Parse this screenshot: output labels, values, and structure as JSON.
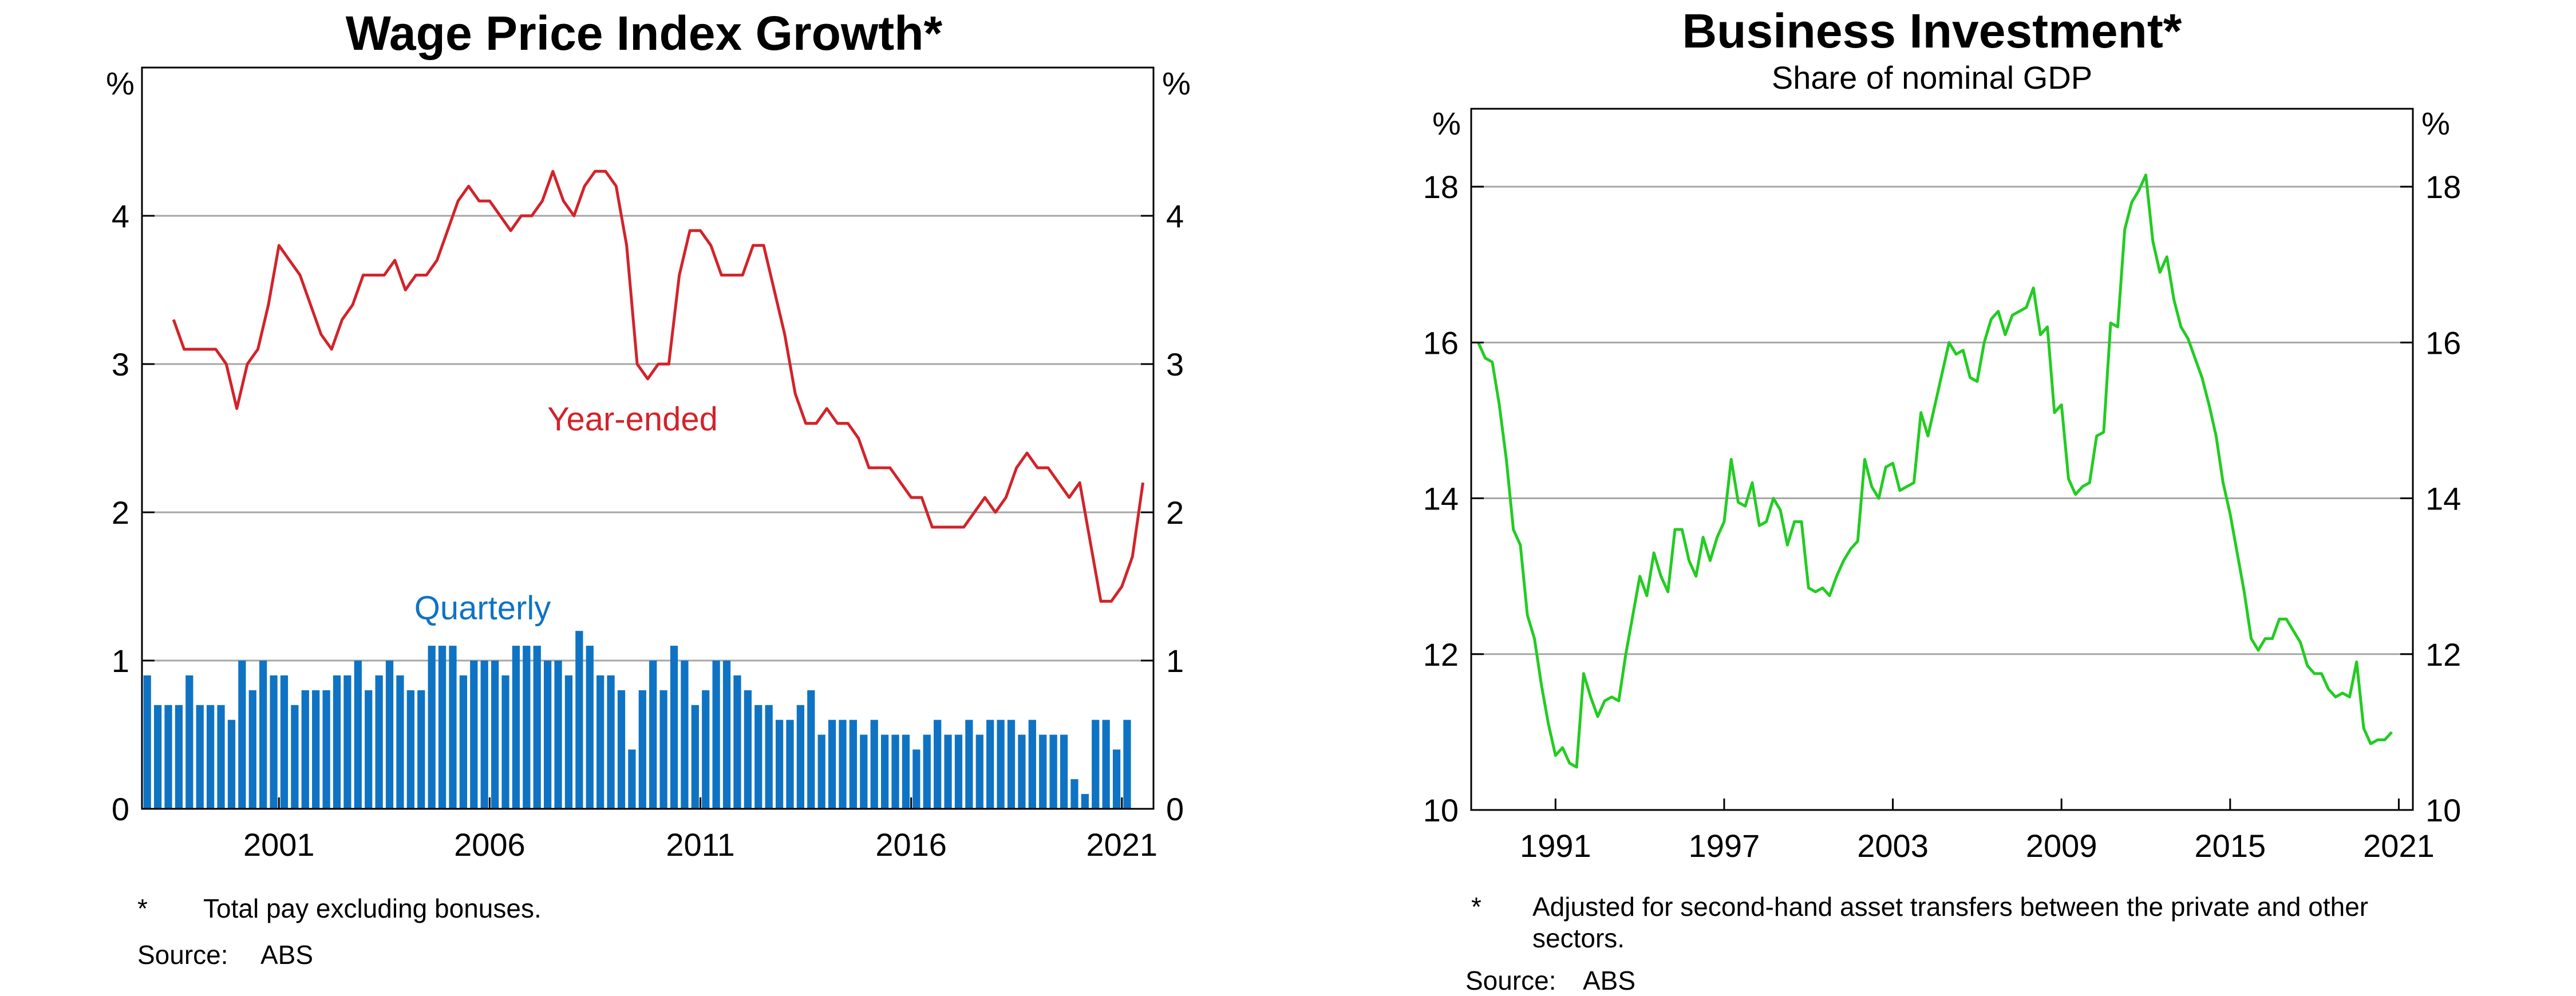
{
  "chart_data": [
    {
      "type": "bar",
      "title": "Wage Price Index Growth*",
      "subtitle": "",
      "y_unit_left": "%",
      "y_unit_right": "%",
      "ylim": [
        0,
        5
      ],
      "yticks": [
        0,
        1,
        2,
        3,
        4
      ],
      "ytick_labels": [
        "0",
        "1",
        "2",
        "3",
        "4"
      ],
      "xlim": [
        1997.75,
        2021.75
      ],
      "xticks": [
        2001,
        2006,
        2011,
        2016,
        2021
      ],
      "xtick_labels": [
        "2001",
        "2006",
        "2011",
        "2016",
        "2021"
      ],
      "grid": true,
      "series": [
        {
          "name": "Year-ended",
          "type": "line",
          "color": "#d2232a",
          "x_start": 1998.5,
          "x_step": 0.25,
          "values": [
            3.3,
            3.1,
            3.1,
            3.1,
            3.1,
            3.0,
            2.7,
            3.0,
            3.1,
            3.4,
            3.8,
            3.7,
            3.6,
            3.4,
            3.2,
            3.1,
            3.3,
            3.4,
            3.6,
            3.6,
            3.6,
            3.7,
            3.5,
            3.6,
            3.6,
            3.7,
            3.9,
            4.1,
            4.2,
            4.1,
            4.1,
            4.0,
            3.9,
            4.0,
            4.0,
            4.1,
            4.3,
            4.1,
            4.0,
            4.2,
            4.3,
            4.3,
            4.2,
            3.8,
            3.0,
            2.9,
            3.0,
            3.0,
            3.6,
            3.9,
            3.9,
            3.8,
            3.6,
            3.6,
            3.6,
            3.8,
            3.8,
            3.5,
            3.2,
            2.8,
            2.6,
            2.6,
            2.7,
            2.6,
            2.6,
            2.5,
            2.3,
            2.3,
            2.3,
            2.2,
            2.1,
            2.1,
            1.9,
            1.9,
            1.9,
            1.9,
            2.0,
            2.1,
            2.0,
            2.1,
            2.3,
            2.4,
            2.3,
            2.3,
            2.2,
            2.1,
            2.2,
            1.8,
            1.4,
            1.4,
            1.5,
            1.7,
            2.2
          ]
        },
        {
          "name": "Quarterly",
          "type": "bar",
          "color": "#0f73c4",
          "x_start": 1997.75,
          "x_step": 0.25,
          "values": [
            0.9,
            0.7,
            0.7,
            0.7,
            0.9,
            0.7,
            0.7,
            0.7,
            0.6,
            1.0,
            0.8,
            1.0,
            0.9,
            0.9,
            0.7,
            0.8,
            0.8,
            0.8,
            0.9,
            0.9,
            1.0,
            0.8,
            0.9,
            1.0,
            0.9,
            0.8,
            0.8,
            1.1,
            1.1,
            1.1,
            0.9,
            1.0,
            1.0,
            1.0,
            0.9,
            1.1,
            1.1,
            1.1,
            1.0,
            1.0,
            0.9,
            1.2,
            1.1,
            0.9,
            0.9,
            0.8,
            0.4,
            0.8,
            1.0,
            0.8,
            1.1,
            1.0,
            0.7,
            0.8,
            1.0,
            1.0,
            0.9,
            0.8,
            0.7,
            0.7,
            0.6,
            0.6,
            0.7,
            0.8,
            0.5,
            0.6,
            0.6,
            0.6,
            0.5,
            0.6,
            0.5,
            0.5,
            0.5,
            0.4,
            0.5,
            0.6,
            0.5,
            0.5,
            0.6,
            0.5,
            0.6,
            0.6,
            0.6,
            0.5,
            0.6,
            0.5,
            0.5,
            0.5,
            0.2,
            0.1,
            0.6,
            0.6,
            0.4,
            0.6
          ]
        }
      ],
      "annotations": [
        {
          "text": "Year-ended",
          "color": "#d2232a"
        },
        {
          "text": "Quarterly",
          "color": "#0f73c4"
        }
      ],
      "footnote": {
        "marker": "*",
        "text": "Total pay excluding bonuses."
      },
      "source": {
        "label": "Source:",
        "value": "ABS"
      }
    },
    {
      "type": "line",
      "title": "Business Investment*",
      "subtitle": "Share of nominal GDP",
      "y_unit_left": "%",
      "y_unit_right": "%",
      "ylim": [
        10,
        19
      ],
      "yticks": [
        10,
        12,
        14,
        16,
        18
      ],
      "ytick_labels": [
        "10",
        "12",
        "14",
        "16",
        "18"
      ],
      "xlim": [
        1988.0,
        2021.5
      ],
      "xticks": [
        1991,
        1997,
        2003,
        2009,
        2015,
        2021
      ],
      "xtick_labels": [
        "1991",
        "1997",
        "2003",
        "2009",
        "2015",
        "2021"
      ],
      "grid": true,
      "series": [
        {
          "name": "",
          "type": "line",
          "color": "#22cc22",
          "x_start": 1988.25,
          "x_step": 0.25,
          "values": [
            16.0,
            15.8,
            15.75,
            15.2,
            14.5,
            13.6,
            13.4,
            12.5,
            12.2,
            11.6,
            11.1,
            10.7,
            10.8,
            10.6,
            10.55,
            11.75,
            11.45,
            11.2,
            11.4,
            11.45,
            11.4,
            12.0,
            12.5,
            13.0,
            12.75,
            13.3,
            13.0,
            12.8,
            13.6,
            13.6,
            13.2,
            13.0,
            13.5,
            13.2,
            13.5,
            13.7,
            14.5,
            13.95,
            13.9,
            14.2,
            13.65,
            13.7,
            14.0,
            13.85,
            13.4,
            13.7,
            13.7,
            12.85,
            12.8,
            12.85,
            12.75,
            13.0,
            13.2,
            13.35,
            13.45,
            14.5,
            14.15,
            14.0,
            14.4,
            14.45,
            14.1,
            14.15,
            14.2,
            15.1,
            14.8,
            15.2,
            15.6,
            16.0,
            15.85,
            15.9,
            15.55,
            15.5,
            16.0,
            16.3,
            16.4,
            16.1,
            16.35,
            16.4,
            16.45,
            16.7,
            16.1,
            16.2,
            15.1,
            15.2,
            14.25,
            14.05,
            14.15,
            14.2,
            14.8,
            14.85,
            16.25,
            16.2,
            17.45,
            17.8,
            17.95,
            18.15,
            17.3,
            16.9,
            17.1,
            16.55,
            16.2,
            16.05,
            15.8,
            15.55,
            15.2,
            14.8,
            14.2,
            13.8,
            13.3,
            12.8,
            12.2,
            12.05,
            12.2,
            12.2,
            12.45,
            12.45,
            12.3,
            12.15,
            11.85,
            11.75,
            11.75,
            11.55,
            11.45,
            11.5,
            11.45,
            11.9,
            11.05,
            10.85,
            10.9,
            10.9,
            11.0
          ]
        }
      ],
      "footnote": {
        "marker": "*",
        "text": "Adjusted for second-hand asset transfers between the private and other sectors."
      },
      "source": {
        "label": "Source:",
        "value": "ABS"
      }
    }
  ]
}
